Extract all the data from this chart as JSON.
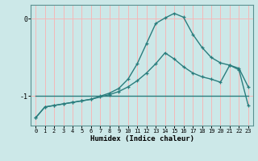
{
  "xlabel": "Humidex (Indice chaleur)",
  "xlim": [
    -0.5,
    23.5
  ],
  "ylim": [
    -1.38,
    0.18
  ],
  "yticks": [
    0,
    -1
  ],
  "xticks": [
    0,
    1,
    2,
    3,
    4,
    5,
    6,
    7,
    8,
    9,
    10,
    11,
    12,
    13,
    14,
    15,
    16,
    17,
    18,
    19,
    20,
    21,
    22,
    23
  ],
  "bg_color": "#cce8e8",
  "grid_color": "#f5b8b8",
  "line_color": "#2a7d7d",
  "line1_x": [
    0,
    1,
    2,
    3,
    4,
    5,
    6,
    7,
    8,
    9,
    10,
    11,
    12,
    13,
    14,
    15,
    16,
    17,
    18,
    19,
    20,
    21,
    22,
    23
  ],
  "line1_y": [
    -1.28,
    -1.14,
    -1.12,
    -1.1,
    -1.08,
    -1.06,
    -1.04,
    -1.0,
    -0.96,
    -0.9,
    -0.78,
    -0.58,
    -0.32,
    -0.06,
    0.01,
    0.07,
    0.02,
    -0.2,
    -0.37,
    -0.5,
    -0.57,
    -0.6,
    -0.66,
    -1.12
  ],
  "line2_x": [
    0,
    1,
    2,
    3,
    4,
    5,
    6,
    7,
    8,
    9,
    10,
    11,
    12,
    13,
    14,
    15,
    16,
    17,
    18,
    19,
    20,
    21,
    22,
    23
  ],
  "line2_y": [
    -1.28,
    -1.14,
    -1.12,
    -1.1,
    -1.08,
    -1.06,
    -1.04,
    -1.01,
    -0.98,
    -0.94,
    -0.88,
    -0.8,
    -0.7,
    -0.58,
    -0.44,
    -0.52,
    -0.62,
    -0.7,
    -0.75,
    -0.78,
    -0.82,
    -0.6,
    -0.64,
    -0.88
  ],
  "line3_x": [
    0,
    23
  ],
  "line3_y": [
    -1.0,
    -1.0
  ]
}
